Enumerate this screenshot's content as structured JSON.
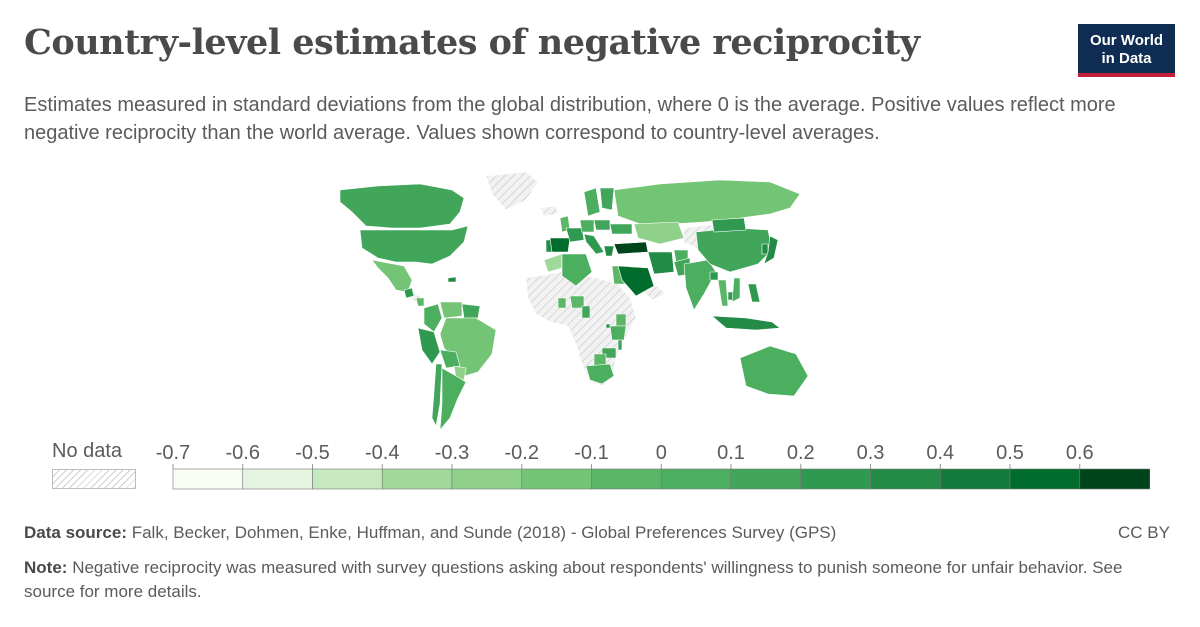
{
  "header": {
    "title": "Country-level estimates of negative reciprocity",
    "subtitle": "Estimates measured in standard deviations from the global distribution, where 0 is the average. Positive values reflect more negative reciprocity than the world average. Values shown correspond to country-level averages.",
    "logo_line1": "Our World",
    "logo_line2": "in Data"
  },
  "legend": {
    "no_data_label": "No data",
    "ticks": [
      "-0.7",
      "-0.6",
      "-0.5",
      "-0.4",
      "-0.3",
      "-0.2",
      "-0.1",
      "0",
      "0.1",
      "0.2",
      "0.3",
      "0.4",
      "0.5",
      "0.6"
    ],
    "colors": [
      "#f7fcf5",
      "#e5f5e0",
      "#c7e9c0",
      "#a1d99b",
      "#8fd18a",
      "#74c476",
      "#5cb668",
      "#4caf60",
      "#41a55a",
      "#2f9a4f",
      "#238b45",
      "#137a3b",
      "#006d2c",
      "#00441b"
    ]
  },
  "footer": {
    "source_label": "Data source:",
    "source_text": "Falk, Becker, Dohmen, Enke, Huffman, and Sunde (2018) - Global Preferences Survey (GPS)",
    "license": "CC BY",
    "note_label": "Note:",
    "note_text": "Negative reciprocity was measured with survey questions asking about respondents' willingness to punish someone for unfair behavior. See source for more details."
  },
  "map": {
    "colors": {
      "no_data_fill": "#f2f2f2",
      "hatch": "#cfcfcf",
      "border": "#ffffff"
    },
    "regions": [
      {
        "name": "Canada",
        "value": 0.1
      },
      {
        "name": "United States",
        "value": 0.15
      },
      {
        "name": "Mexico",
        "value": -0.15
      },
      {
        "name": "Guatemala",
        "value": 0.2
      },
      {
        "name": "Nicaragua",
        "value": -0.05
      },
      {
        "name": "Haiti",
        "value": 0.3
      },
      {
        "name": "Colombia",
        "value": 0.0
      },
      {
        "name": "Venezuela",
        "value": -0.2
      },
      {
        "name": "Suriname",
        "value": 0.1
      },
      {
        "name": "Peru",
        "value": 0.2
      },
      {
        "name": "Brazil",
        "value": -0.2
      },
      {
        "name": "Bolivia",
        "value": 0.05
      },
      {
        "name": "Paraguay",
        "value": -0.25
      },
      {
        "name": "Chile",
        "value": 0.1
      },
      {
        "name": "Argentina",
        "value": 0.0
      },
      {
        "name": "Greenland",
        "value": null
      },
      {
        "name": "Iceland",
        "value": null
      },
      {
        "name": "United Kingdom",
        "value": -0.1
      },
      {
        "name": "Portugal",
        "value": 0.3
      },
      {
        "name": "Spain",
        "value": 0.5
      },
      {
        "name": "France",
        "value": 0.2
      },
      {
        "name": "Germany",
        "value": 0.0
      },
      {
        "name": "Sweden",
        "value": 0.05
      },
      {
        "name": "Finland",
        "value": 0.1
      },
      {
        "name": "Poland",
        "value": 0.15
      },
      {
        "name": "Italy",
        "value": 0.2
      },
      {
        "name": "Greece",
        "value": 0.35
      },
      {
        "name": "Ukraine",
        "value": 0.1
      },
      {
        "name": "Russia",
        "value": -0.15
      },
      {
        "name": "Turkey",
        "value": 0.6
      },
      {
        "name": "Kazakhstan",
        "value": -0.3
      },
      {
        "name": "Morocco",
        "value": -0.4
      },
      {
        "name": "Algeria",
        "value": 0.05
      },
      {
        "name": "Egypt",
        "value": -0.1
      },
      {
        "name": "Saudi Arabia",
        "value": 0.55
      },
      {
        "name": "Iran",
        "value": 0.3
      },
      {
        "name": "Afghanistan",
        "value": 0.0
      },
      {
        "name": "Pakistan",
        "value": 0.1
      },
      {
        "name": "India",
        "value": 0.05
      },
      {
        "name": "China",
        "value": 0.15
      },
      {
        "name": "Mongolia",
        "value": 0.2
      },
      {
        "name": "South Korea",
        "value": 0.3
      },
      {
        "name": "Japan",
        "value": 0.35
      },
      {
        "name": "Bangladesh",
        "value": 0.2
      },
      {
        "name": "Thailand",
        "value": -0.1
      },
      {
        "name": "Cambodia",
        "value": 0.25
      },
      {
        "name": "Vietnam",
        "value": 0.05
      },
      {
        "name": "Philippines",
        "value": 0.2
      },
      {
        "name": "Indonesia",
        "value": 0.3
      },
      {
        "name": "Nigeria",
        "value": -0.05
      },
      {
        "name": "Ghana",
        "value": -0.1
      },
      {
        "name": "Cameroon",
        "value": 0.1
      },
      {
        "name": "Kenya",
        "value": -0.1
      },
      {
        "name": "Tanzania",
        "value": 0.0
      },
      {
        "name": "Rwanda",
        "value": 0.2
      },
      {
        "name": "Malawi",
        "value": 0.1
      },
      {
        "name": "Zimbabwe",
        "value": 0.15
      },
      {
        "name": "Botswana",
        "value": -0.05
      },
      {
        "name": "South Africa",
        "value": 0.0
      },
      {
        "name": "Australia",
        "value": 0.05
      }
    ]
  }
}
